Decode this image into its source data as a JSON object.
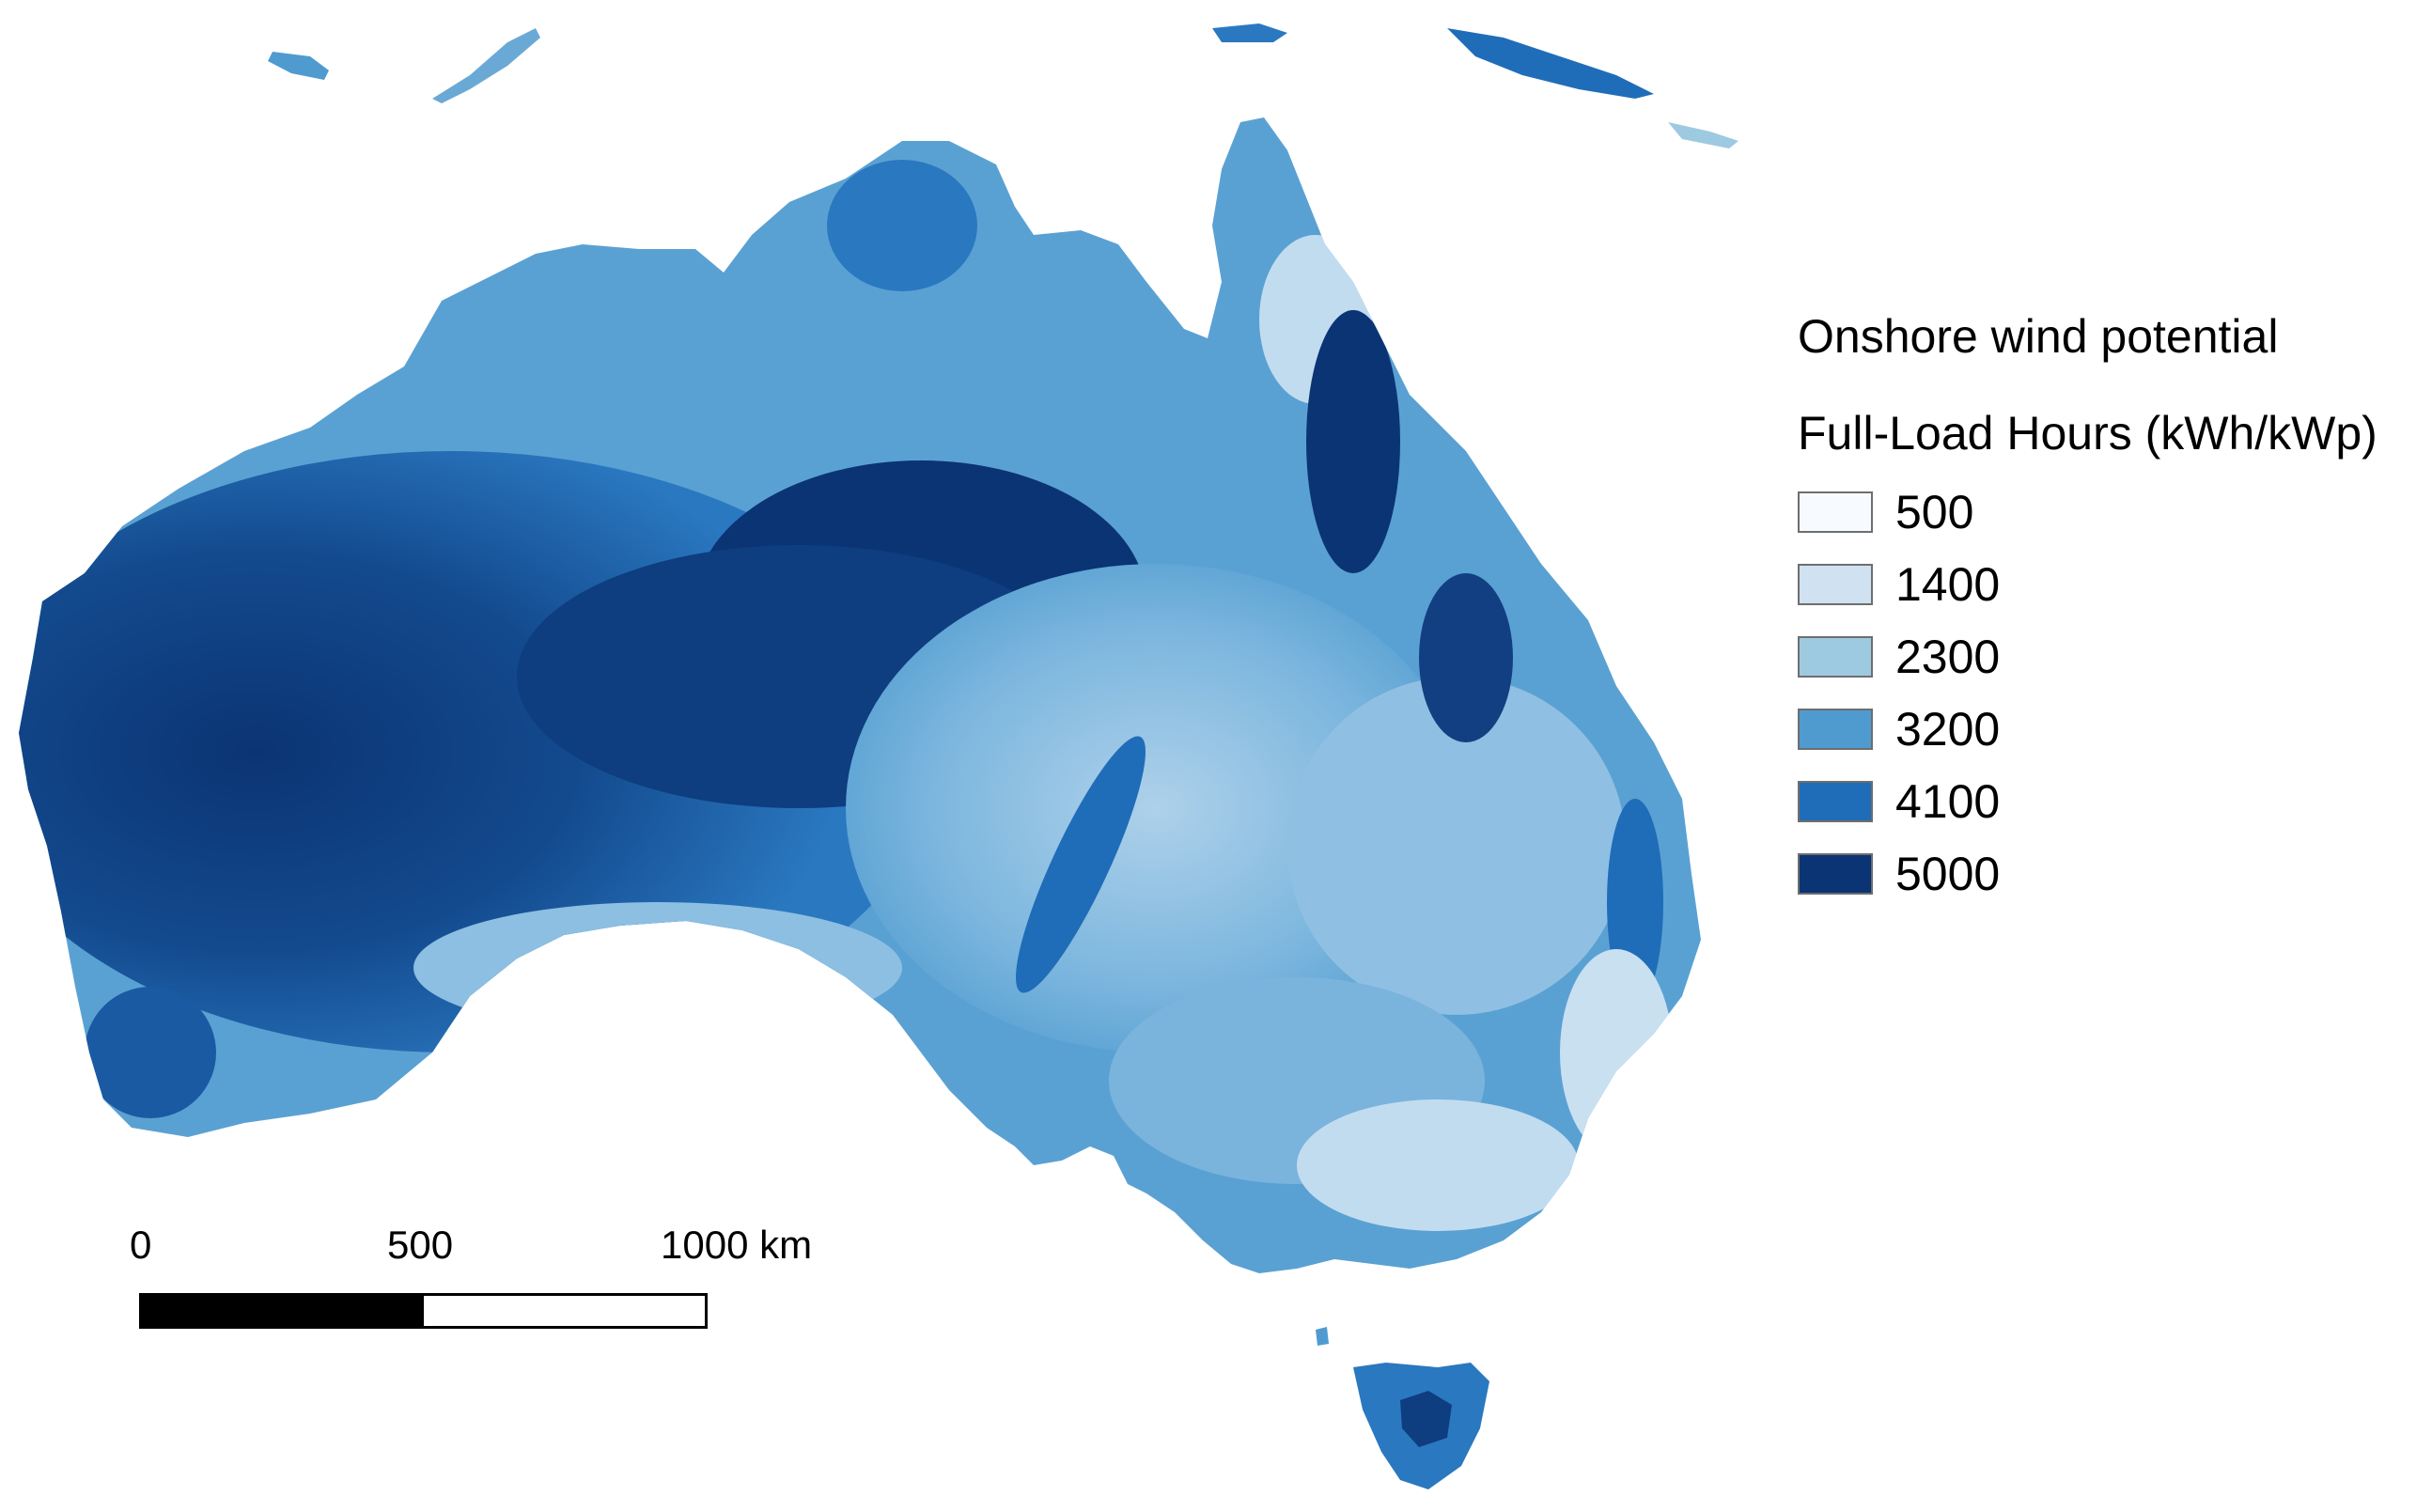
{
  "legend": {
    "title": "Onshore wind potential",
    "subtitle": "Full-Load Hours (kWh/kWp)",
    "classes": [
      {
        "label": "500",
        "color": "#f7fbff"
      },
      {
        "label": "1400",
        "color": "#d0e1f2"
      },
      {
        "label": "2300",
        "color": "#9ecae1"
      },
      {
        "label": "3200",
        "color": "#4f9bd0"
      },
      {
        "label": "4100",
        "color": "#1f6db8"
      },
      {
        "label": "5000",
        "color": "#0b3474"
      }
    ]
  },
  "scale_bar": {
    "labels": [
      "0",
      "500",
      "1000 km"
    ],
    "filled_fraction": 0.5
  },
  "map": {
    "region": "Australia",
    "palette": {
      "low": "#deebf7",
      "mid_low": "#9ecae1",
      "mid": "#4f9bd0",
      "high": "#1f6db8",
      "very_high": "#0b3474"
    }
  }
}
